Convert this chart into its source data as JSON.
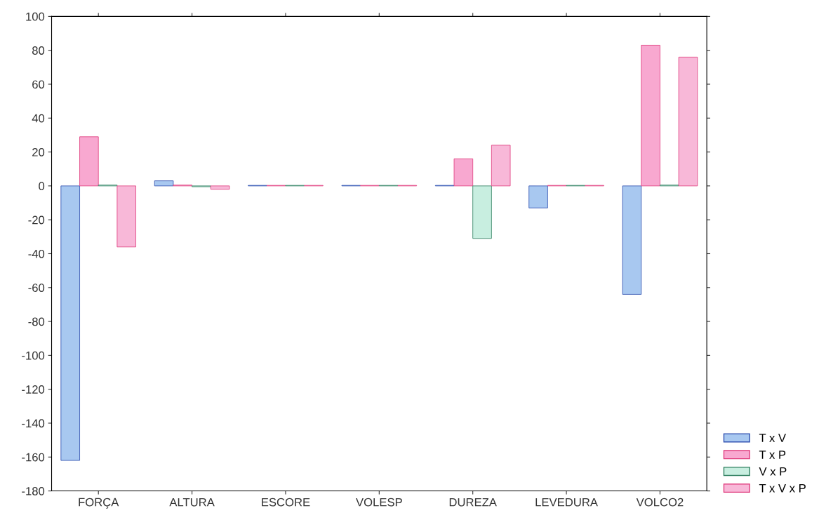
{
  "chart_data": {
    "type": "bar",
    "categories": [
      "FORÇA",
      "ALTURA",
      "ESCORE",
      "VOLESP",
      "DUREZA",
      "LEVEDURA",
      "VOLCO2"
    ],
    "series": [
      {
        "name": "T x V",
        "color": "#a8c8f0",
        "values": [
          -162,
          3,
          0.3,
          0.3,
          0.3,
          -13,
          -64
        ]
      },
      {
        "name": "T x P",
        "color": "#f8a8d0",
        "values": [
          29,
          0.5,
          0.3,
          0.3,
          16,
          0.3,
          83
        ]
      },
      {
        "name": "V x P",
        "color": "#c8eee0",
        "values": [
          0.5,
          -0.5,
          0.3,
          0.3,
          -31,
          0.3,
          0.5
        ]
      },
      {
        "name": "T x V x P",
        "color": "#f8b8d8",
        "values": [
          -36,
          -2,
          0.3,
          0.3,
          24,
          0.3,
          76
        ]
      }
    ],
    "ylim": [
      -180,
      100
    ],
    "yticks": [
      -180,
      -160,
      -140,
      -120,
      -100,
      -80,
      -60,
      -40,
      -20,
      0,
      20,
      40,
      60,
      80,
      100
    ],
    "grid": false,
    "legend": "bottom right"
  }
}
